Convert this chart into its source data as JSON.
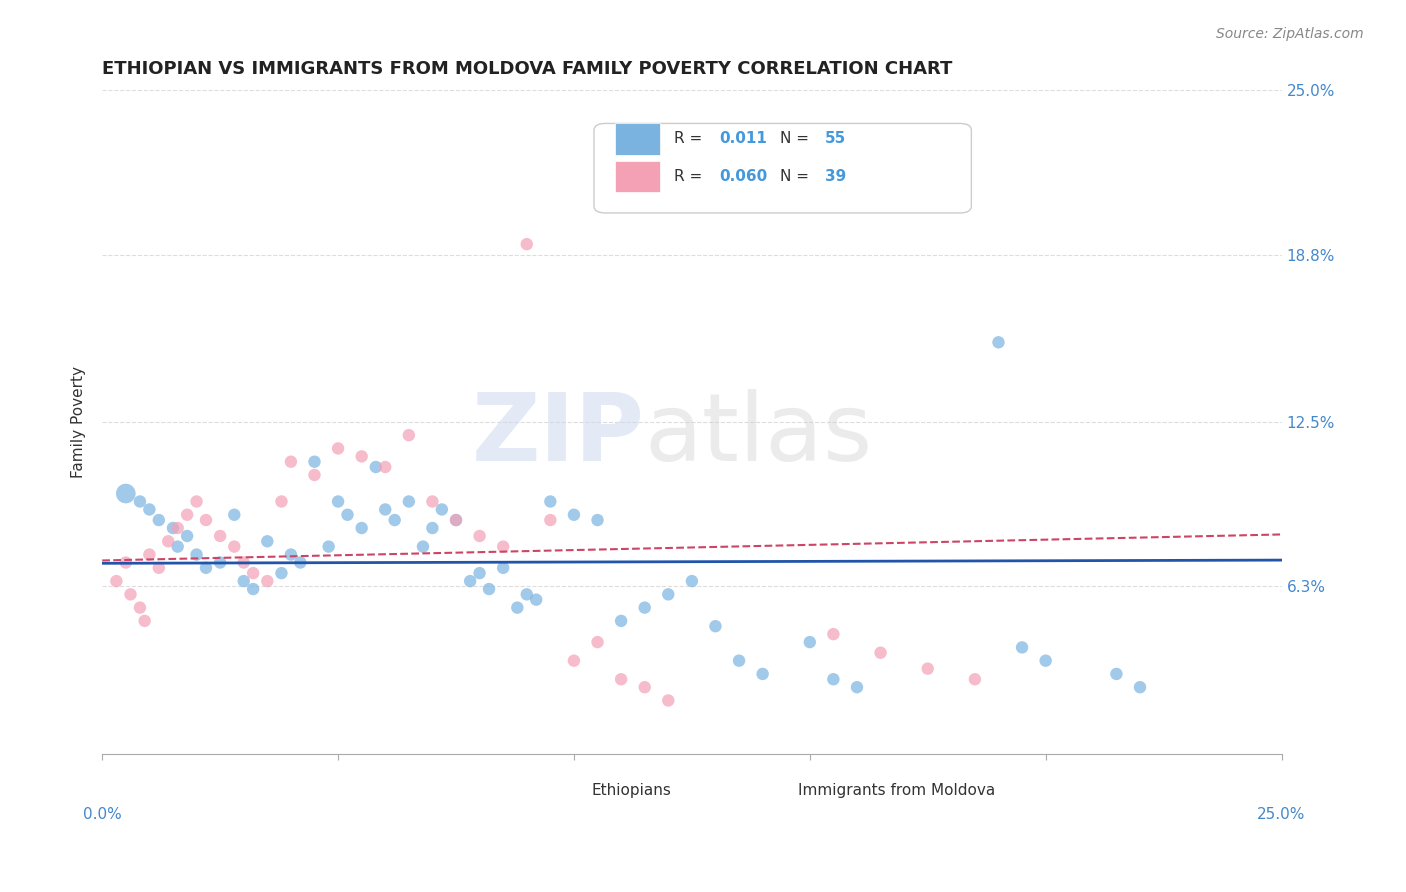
{
  "title": "ETHIOPIAN VS IMMIGRANTS FROM MOLDOVA FAMILY POVERTY CORRELATION CHART",
  "source": "Source: ZipAtlas.com",
  "ylabel": "Family Poverty",
  "xlim": [
    0.0,
    0.25
  ],
  "ylim": [
    0.0,
    0.25
  ],
  "ytick_pos": [
    0.0,
    0.063,
    0.125,
    0.188,
    0.25
  ],
  "ytick_labels": [
    "",
    "6.3%",
    "12.5%",
    "18.8%",
    "25.0%"
  ],
  "background_color": "#ffffff",
  "grid_color": "#dddddd",
  "legend_r1_label": "R = ",
  "legend_r1_val": "0.011",
  "legend_n1_label": "N = ",
  "legend_n1_val": "55",
  "legend_r2_label": "R = ",
  "legend_r2_val": "0.060",
  "legend_n2_label": "N = ",
  "legend_n2_val": "39",
  "blue_color": "#7ab3e0",
  "pink_color": "#f4a0b5",
  "line_blue": "#2255aa",
  "line_pink": "#cc4466",
  "ethiopians_x": [
    0.005,
    0.008,
    0.01,
    0.012,
    0.015,
    0.016,
    0.018,
    0.02,
    0.022,
    0.025,
    0.028,
    0.03,
    0.032,
    0.035,
    0.038,
    0.04,
    0.042,
    0.045,
    0.048,
    0.05,
    0.052,
    0.055,
    0.058,
    0.06,
    0.062,
    0.065,
    0.068,
    0.07,
    0.072,
    0.075,
    0.078,
    0.08,
    0.082,
    0.085,
    0.088,
    0.09,
    0.092,
    0.095,
    0.1,
    0.105,
    0.11,
    0.115,
    0.12,
    0.125,
    0.13,
    0.135,
    0.14,
    0.15,
    0.155,
    0.16,
    0.19,
    0.195,
    0.2,
    0.215,
    0.22
  ],
  "ethiopians_y": [
    0.098,
    0.095,
    0.092,
    0.088,
    0.085,
    0.078,
    0.082,
    0.075,
    0.07,
    0.072,
    0.09,
    0.065,
    0.062,
    0.08,
    0.068,
    0.075,
    0.072,
    0.11,
    0.078,
    0.095,
    0.09,
    0.085,
    0.108,
    0.092,
    0.088,
    0.095,
    0.078,
    0.085,
    0.092,
    0.088,
    0.065,
    0.068,
    0.062,
    0.07,
    0.055,
    0.06,
    0.058,
    0.095,
    0.09,
    0.088,
    0.05,
    0.055,
    0.06,
    0.065,
    0.048,
    0.035,
    0.03,
    0.042,
    0.028,
    0.025,
    0.155,
    0.04,
    0.035,
    0.03,
    0.025
  ],
  "ethiopians_size": [
    200,
    80,
    80,
    80,
    80,
    80,
    80,
    80,
    80,
    80,
    80,
    80,
    80,
    80,
    80,
    80,
    80,
    80,
    80,
    80,
    80,
    80,
    80,
    80,
    80,
    80,
    80,
    80,
    80,
    80,
    80,
    80,
    80,
    80,
    80,
    80,
    80,
    80,
    80,
    80,
    80,
    80,
    80,
    80,
    80,
    80,
    80,
    80,
    80,
    80,
    80,
    80,
    80,
    80,
    80
  ],
  "moldova_x": [
    0.003,
    0.005,
    0.006,
    0.008,
    0.009,
    0.01,
    0.012,
    0.014,
    0.016,
    0.018,
    0.02,
    0.022,
    0.025,
    0.028,
    0.03,
    0.032,
    0.035,
    0.038,
    0.04,
    0.045,
    0.05,
    0.055,
    0.06,
    0.065,
    0.07,
    0.075,
    0.08,
    0.085,
    0.09,
    0.095,
    0.1,
    0.105,
    0.11,
    0.115,
    0.12,
    0.155,
    0.165,
    0.175,
    0.185
  ],
  "moldova_y": [
    0.065,
    0.072,
    0.06,
    0.055,
    0.05,
    0.075,
    0.07,
    0.08,
    0.085,
    0.09,
    0.095,
    0.088,
    0.082,
    0.078,
    0.072,
    0.068,
    0.065,
    0.095,
    0.11,
    0.105,
    0.115,
    0.112,
    0.108,
    0.12,
    0.095,
    0.088,
    0.082,
    0.078,
    0.192,
    0.088,
    0.035,
    0.042,
    0.028,
    0.025,
    0.02,
    0.045,
    0.038,
    0.032,
    0.028
  ],
  "moldova_size": [
    80,
    80,
    80,
    80,
    80,
    80,
    80,
    80,
    80,
    80,
    80,
    80,
    80,
    80,
    80,
    80,
    80,
    80,
    80,
    80,
    80,
    80,
    80,
    80,
    80,
    80,
    80,
    80,
    80,
    80,
    80,
    80,
    80,
    80,
    80,
    80,
    80,
    80,
    80
  ]
}
